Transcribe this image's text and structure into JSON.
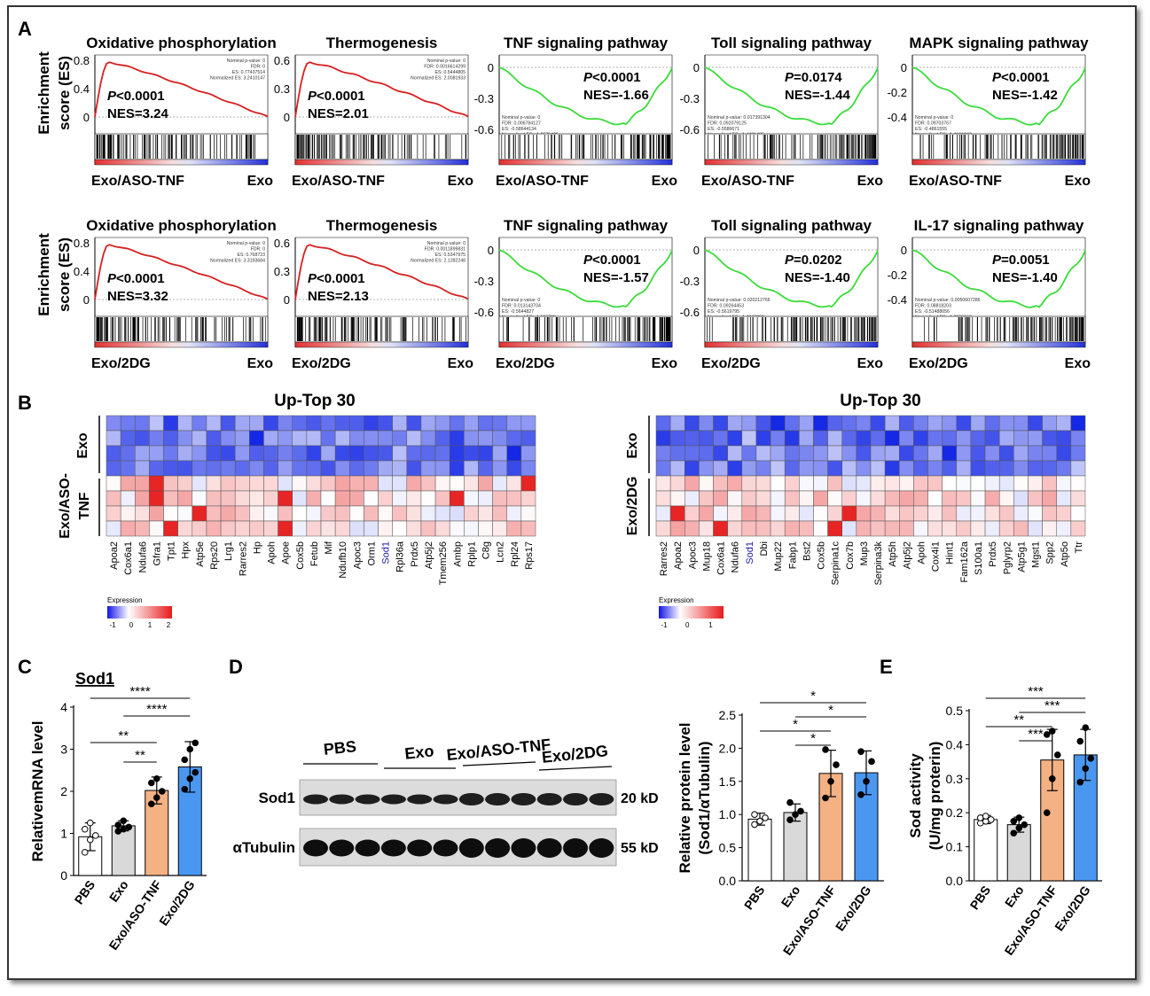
{
  "panels": {
    "A": "A",
    "B": "B",
    "C": "C",
    "D": "D",
    "E": "E"
  },
  "gsea": {
    "ylabel_line1": "Enrichment",
    "ylabel_line2": "score (ES)",
    "rows": [
      {
        "left_label": "Exo/ASO-TNF",
        "right_label": "Exo",
        "plots": [
          {
            "title": "Oxidative phosphorylation",
            "direction": "up",
            "color": "#d62020",
            "ymax": 0.8,
            "ticks": [
              "0.8",
              "0.4",
              "0"
            ],
            "pval": "<0.0001",
            "nes": "NES=3.24",
            "stats": [
              "Nominal p-value: 0",
              "FDR: 0",
              "ES: 0.77437514",
              "Normalized ES: 3.2410147"
            ]
          },
          {
            "title": "Thermogenesis",
            "direction": "up",
            "color": "#d62020",
            "ymax": 0.6,
            "ticks": [
              "0.6",
              "0.3",
              "0"
            ],
            "pval": "<0.0001",
            "nes": "NES=2.01",
            "stats": [
              "Nominal p-value: 0",
              "FDR: 0.0016614299",
              "ES: 0.5444805",
              "Normalized ES: 2.0081933"
            ]
          },
          {
            "title": "TNF signaling pathway",
            "direction": "down",
            "color": "#3adc3a",
            "ymin": -0.6,
            "ticks": [
              "0",
              "-0.3",
              "-0.6"
            ],
            "pval": "<0.0001",
            "nes": "NES=-1.66",
            "stats": [
              "Nominal p-value: 0",
              "FDR: 0.006784127",
              "ES: -0.58644134",
              "Normalized ES: -1.6579425"
            ]
          },
          {
            "title": "Toll signaling pathway",
            "direction": "down",
            "color": "#3adc3a",
            "ymin": -0.6,
            "ticks": [
              "0",
              "-0.3",
              "-0.6"
            ],
            "pval": "=0.0174",
            "nes": "NES=-1.44",
            "stats": [
              "Nominal p-value: 0.017391304",
              "FDR: 0.092079125",
              "ES: -0.5586671",
              "Normalized ES: -1.4401495"
            ]
          },
          {
            "title": "MAPK signaling pathway",
            "direction": "down",
            "color": "#3adc3a",
            "ymin": -0.5,
            "ticks": [
              "0",
              "-0.2",
              "-0.4"
            ],
            "pval": "<0.0001",
            "nes": "NES=-1.42",
            "stats": [
              "Nominal p-value: 0",
              "FDR: 0.09703767",
              "ES: -0.4861555",
              "Normalized ES: -1.4161843"
            ]
          }
        ]
      },
      {
        "left_label": "Exo/2DG",
        "right_label": "Exo",
        "plots": [
          {
            "title": "Oxidative phosphorylation",
            "direction": "up",
            "color": "#d62020",
            "ymax": 0.8,
            "ticks": [
              "0.8",
              "0.4",
              "0"
            ],
            "pval": "<0.0001",
            "nes": "NES=3.32",
            "stats": [
              "Nominal p-value: 0",
              "FDR: 0",
              "ES: 0.768723",
              "Normalized ES: 3.3193684"
            ]
          },
          {
            "title": "Thermogenesis",
            "direction": "up",
            "color": "#d62020",
            "ymax": 0.6,
            "ticks": [
              "0.6",
              "0.3",
              "0"
            ],
            "pval": "<0.0001",
            "nes": "NES=2.13",
            "stats": [
              "Nominal p-value: 0",
              "FDR: 0.0011899831",
              "ES: 0.5347975",
              "Normalized ES: 2.1282248"
            ]
          },
          {
            "title": "TNF signaling pathway",
            "direction": "down",
            "color": "#3adc3a",
            "ymin": -0.6,
            "ticks": [
              "0",
              "-0.3",
              "-0.6"
            ],
            "pval": "<0.0001",
            "nes": "NES=-1.57",
            "stats": [
              "Nominal p-value: 0",
              "FDR: 0.013143704",
              "ES: -0.5644827",
              "Normalized ES: -1.566786"
            ]
          },
          {
            "title": "Toll signaling pathway",
            "direction": "down",
            "color": "#3adc3a",
            "ymin": -0.6,
            "ticks": [
              "0",
              "-0.3",
              "-0.6"
            ],
            "pval": "=0.0202",
            "nes": "NES=-1.40",
            "stats": [
              "Nominal p-value: 0.020212766",
              "FDR: 0.09264453",
              "ES: -0.5619795",
              "Normalized ES: -1.4047292"
            ]
          },
          {
            "title": "IL-17 signaling pathway",
            "direction": "down",
            "color": "#3adc3a",
            "ymin": -0.5,
            "ticks": [
              "0",
              "-0.2",
              "-0.4"
            ],
            "pval": "=0.0051",
            "nes": "NES=-1.40",
            "stats": [
              "Nominal p-value: 0.0050607286",
              "FDR: 0.08818203",
              "ES: -0.51488656",
              "Normalized ES: -1.3963163"
            ]
          }
        ]
      }
    ]
  },
  "heatmaps": [
    {
      "title": "Up-Top 30",
      "group_top": "Exo",
      "group_bottom_lines": [
        "Exo/ASO-",
        "TNF"
      ],
      "genes": [
        "Apoa2",
        "Cox6a1",
        "Ndufa6",
        "Gfra1",
        "Tpt1",
        "Hpx",
        "Atp5e",
        "Rps20",
        "Lrg1",
        "Rarres2",
        "Hp",
        "Apoh",
        "Apoe",
        "Cox5b",
        "Fetub",
        "Mif",
        "Ndufb10",
        "Apoc3",
        "Orm1",
        "Sod1",
        "Rpl36a",
        "Prdx5",
        "Atp5j2",
        "Tmem256",
        "Ambp",
        "Rplp1",
        "C8g",
        "Lcn2",
        "Rpl24",
        "Rps17"
      ],
      "highlight": "Sod1",
      "legend_title": "Expression",
      "legend_ticks": [
        "-1",
        "0",
        "1",
        "2"
      ]
    },
    {
      "title": "Up-Top 30",
      "group_top": "Exo",
      "group_bottom_lines": [
        "Exo/2DG"
      ],
      "genes": [
        "Rarres2",
        "Apoa2",
        "Apoc3",
        "Mup18",
        "Cox6a1",
        "Ndufa6",
        "Sod1",
        "Dbi",
        "Mup22",
        "Fabp1",
        "Bst2",
        "Cox5b",
        "Serpina1c",
        "Cox7b",
        "Mup3",
        "Serpina3k",
        "Atp5h",
        "Atp5j2",
        "Apoh",
        "Cox4i1",
        "Hint1",
        "Fam162a",
        "S100a1",
        "Prdx5",
        "Pglyrp2",
        "Atp5g1",
        "Mgst1",
        "Spp2",
        "Atp5o",
        "Ttr"
      ],
      "highlight": "Sod1",
      "legend_title": "Expression",
      "legend_ticks": [
        "-1",
        "0",
        "1"
      ]
    }
  ],
  "chart_data": [
    {
      "type": "bar",
      "title": "Sod1",
      "ylabel": "RelativemRNA level",
      "ylim": [
        0,
        4
      ],
      "yticks": [
        "0",
        "1",
        "2",
        "3",
        "4"
      ],
      "categories": [
        "PBS",
        "Exo",
        "Exo/ASO-TNF",
        "Exo/2DG"
      ],
      "values": [
        0.92,
        1.18,
        2.02,
        2.58
      ],
      "errors": [
        0.33,
        0.12,
        0.32,
        0.6
      ],
      "colors": [
        "#ffffff",
        "#d9d9d9",
        "#f4b183",
        "#4a97f2"
      ],
      "points": [
        [
          0.55,
          0.85,
          0.95,
          1.1,
          1.25
        ],
        [
          1.05,
          1.1,
          1.15,
          1.2,
          1.3
        ],
        [
          1.7,
          1.85,
          2.0,
          2.2,
          2.3
        ],
        [
          2.05,
          2.3,
          2.45,
          2.75,
          3.0,
          3.15
        ]
      ],
      "significance": [
        {
          "from": 0,
          "to": 3,
          "label": "****"
        },
        {
          "from": 1,
          "to": 3,
          "label": "****"
        },
        {
          "from": 0,
          "to": 2,
          "label": "**"
        },
        {
          "from": 1,
          "to": 2,
          "label": "**"
        }
      ]
    },
    {
      "type": "bar",
      "ylabel_line1": "Relative protein level",
      "ylabel_line2": "(Sod1/αTubulin)",
      "ylim": [
        0,
        2.5
      ],
      "yticks": [
        "0.0",
        "0.5",
        "1.0",
        "1.5",
        "2.0",
        "2.5"
      ],
      "categories": [
        "PBS",
        "Exo",
        "Exo/ASO-TNF",
        "Exo/2DG"
      ],
      "values": [
        0.93,
        1.03,
        1.62,
        1.63
      ],
      "errors": [
        0.09,
        0.13,
        0.35,
        0.33
      ],
      "colors": [
        "#ffffff",
        "#d9d9d9",
        "#f4b183",
        "#4a97f2"
      ],
      "points": [
        [
          0.85,
          0.9,
          0.95,
          1.0
        ],
        [
          0.92,
          1.0,
          1.05,
          1.18
        ],
        [
          1.25,
          1.5,
          1.75,
          1.98
        ],
        [
          1.3,
          1.5,
          1.8,
          1.95
        ]
      ],
      "significance": [
        {
          "from": 0,
          "to": 3,
          "label": "*"
        },
        {
          "from": 1,
          "to": 3,
          "label": "*"
        },
        {
          "from": 0,
          "to": 2,
          "label": "*"
        },
        {
          "from": 1,
          "to": 2,
          "label": "*"
        }
      ]
    },
    {
      "type": "bar",
      "ylabel_line1": "Sod activity",
      "ylabel_line2": "(U/mg proterin)",
      "ylim": [
        0,
        0.5
      ],
      "yticks": [
        "0.0",
        "0.1",
        "0.2",
        "0.3",
        "0.4",
        "0.5"
      ],
      "categories": [
        "PBS",
        "Exo",
        "Exo/ASO-TNF",
        "Exo/2DG"
      ],
      "values": [
        0.18,
        0.165,
        0.355,
        0.37
      ],
      "errors": [
        0.012,
        0.022,
        0.09,
        0.075
      ],
      "colors": [
        "#ffffff",
        "#d9d9d9",
        "#f4b183",
        "#4a97f2"
      ],
      "points": [
        [
          0.17,
          0.175,
          0.18,
          0.185,
          0.19
        ],
        [
          0.14,
          0.155,
          0.165,
          0.175,
          0.185
        ],
        [
          0.2,
          0.3,
          0.37,
          0.43,
          0.44
        ],
        [
          0.29,
          0.33,
          0.36,
          0.41,
          0.45
        ]
      ],
      "significance": [
        {
          "from": 0,
          "to": 3,
          "label": "***"
        },
        {
          "from": 1,
          "to": 3,
          "label": "***"
        },
        {
          "from": 0,
          "to": 2,
          "label": "**"
        },
        {
          "from": 1,
          "to": 2,
          "label": "***"
        }
      ]
    }
  ],
  "western": {
    "groups": [
      "PBS",
      "Exo",
      "Exo/ASO-TNF",
      "Exo/2DG"
    ],
    "bands": [
      {
        "label": "Sod1",
        "size": "20 kD"
      },
      {
        "label": "αTubulin",
        "size": "55 kD"
      }
    ]
  }
}
